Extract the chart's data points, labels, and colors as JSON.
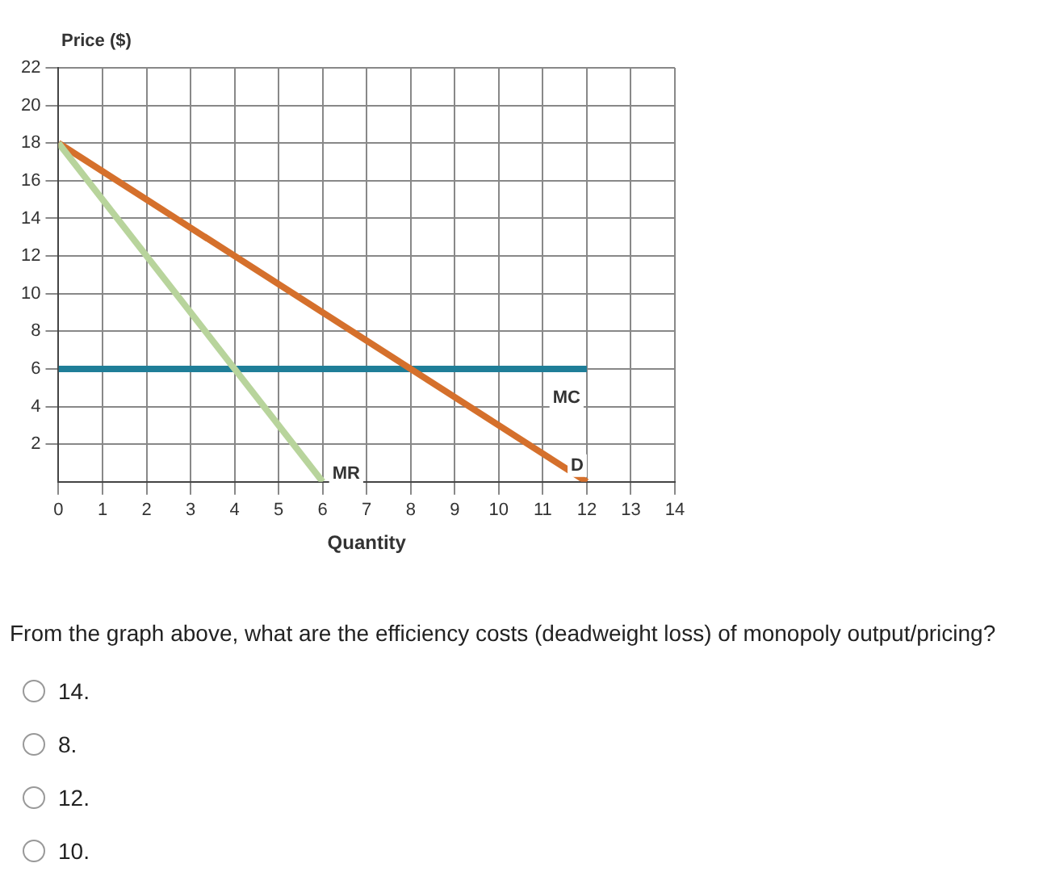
{
  "chart_data": {
    "type": "line",
    "xlabel": "Quantity",
    "ylabel": "Price ($)",
    "xlim": [
      0,
      14
    ],
    "xticks": [
      0,
      1,
      2,
      3,
      4,
      5,
      6,
      7,
      8,
      9,
      10,
      11,
      12,
      13,
      14
    ],
    "ylim": [
      0,
      22
    ],
    "yticks": [
      2,
      4,
      6,
      8,
      10,
      12,
      14,
      16,
      18,
      20,
      22
    ],
    "grid": true,
    "legend": false,
    "marker": "none",
    "series": [
      {
        "name": "MR",
        "color": "#b8d49c",
        "x": [
          0,
          6
        ],
        "values": [
          18,
          0
        ]
      },
      {
        "name": "D",
        "color": "#d5702c",
        "x": [
          0,
          12
        ],
        "values": [
          18,
          0
        ]
      },
      {
        "name": "MC",
        "color": "#1f7e98",
        "x": [
          0,
          12
        ],
        "values": [
          6,
          6
        ]
      }
    ],
    "annotations": [
      "From the graph above, what are the efficiency costs (deadweight loss) of monopoly output/pricing?",
      "14.",
      "8.",
      "12.",
      "10."
    ]
  }
}
